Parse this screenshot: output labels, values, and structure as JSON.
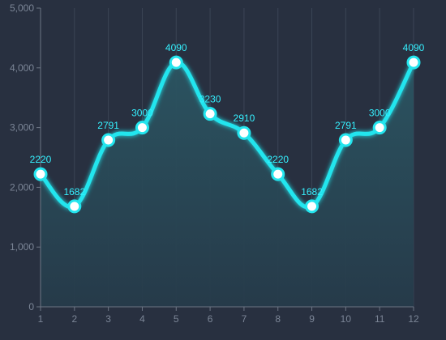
{
  "chart_data": {
    "type": "area",
    "categories": [
      "1",
      "2",
      "3",
      "4",
      "5",
      "6",
      "7",
      "8",
      "9",
      "10",
      "11",
      "12"
    ],
    "series": [
      {
        "values": [
          2220,
          1682,
          2791,
          3000,
          4090,
          3230,
          2910,
          2220,
          1682,
          2791,
          3000,
          4090
        ]
      }
    ],
    "y_ticks": [
      "0",
      "1,000",
      "2,000",
      "3,000",
      "4,000",
      "5,000"
    ],
    "ylim": [
      0,
      5000
    ],
    "grid": "vertical",
    "smooth": true,
    "colors": {
      "background": "#283040",
      "line": "#23e5ee",
      "area_top": "#2b5562",
      "area_bottom": "#263b4a",
      "marker_fill": "#ffffff",
      "marker_stroke": "#23e5ee",
      "label": "#35f1ff",
      "axis": "#6d7685",
      "grid": "#3b4556",
      "tick_text": "#7b8596"
    }
  }
}
